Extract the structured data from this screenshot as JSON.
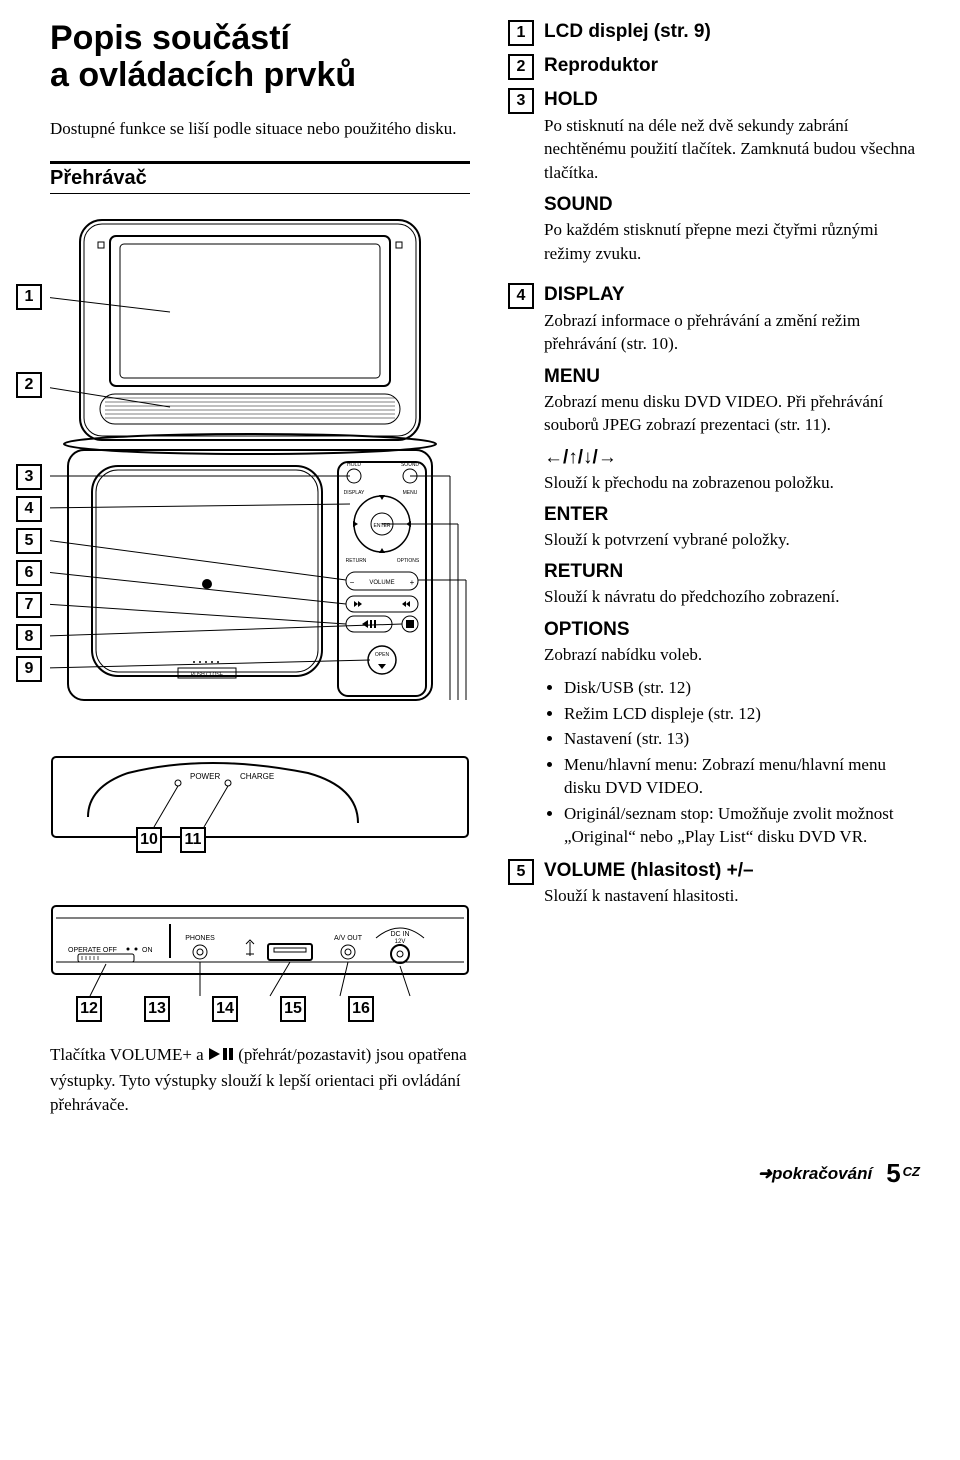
{
  "title_lines": [
    "Popis součástí",
    "a ovládacích prvků"
  ],
  "intro": "Dostupné funkce se liší podle situace nebo použitého disku.",
  "section_head": "Přehrávač",
  "note_before_numbers": "Tlačítka VOLUME+ a",
  "note_after_icon": "(přehrát/pozastavit) jsou opatřena výstupky. Tyto výstupky slouží k lepší orientaci při ovládání přehrávače.",
  "left_callouts_group1": [
    "1",
    "2",
    "3",
    "4",
    "5",
    "6",
    "7",
    "8",
    "9"
  ],
  "left_callouts_group2": [
    "10",
    "11"
  ],
  "left_callouts_group3": [
    "12",
    "13",
    "14",
    "15",
    "16"
  ],
  "svg_labels": {
    "power": "POWER",
    "charge": "CHARGE",
    "operate": "OPERATE OFF",
    "on": "ON",
    "phones": "PHONES",
    "avout": "A/V OUT",
    "dcin": "DC IN",
    "dcin2": "12V",
    "enter": "ENTER",
    "volume": "VOLUME",
    "open": "OPEN",
    "return": "RETURN",
    "options": "OPTIONS",
    "hold": "HOLD",
    "sound": "SOUND",
    "display": "DISPLAY",
    "menu": "MENU",
    "push": "PUSH CLOSE"
  },
  "items": [
    {
      "num": "1",
      "title": "LCD displej (str. 9)"
    },
    {
      "num": "2",
      "title": "Reproduktor"
    },
    {
      "num": "3",
      "title": "HOLD",
      "blocks": [
        {
          "type": "p",
          "text": "Po stisknutí na déle než dvě sekundy zabrání nechtěnému použití tlačítek. Zamknutá budou všechna tlačítka."
        },
        {
          "type": "sub",
          "text": "SOUND"
        },
        {
          "type": "p",
          "text": "Po každém stisknutí přepne mezi čtyřmi různými režimy zvuku."
        }
      ]
    },
    {
      "num": "4",
      "title": "DISPLAY",
      "blocks": [
        {
          "type": "p",
          "text": "Zobrazí informace o přehrávání a změní režim přehrávání (str. 10)."
        },
        {
          "type": "sub",
          "text": "MENU"
        },
        {
          "type": "p",
          "text": "Zobrazí menu disku DVD VIDEO. Při přehrávání souborů JPEG zobrazí prezentaci (str. 11)."
        },
        {
          "type": "sub",
          "text": "←/↑/↓/→"
        },
        {
          "type": "p",
          "text": "Slouží k přechodu na zobrazenou položku."
        },
        {
          "type": "sub",
          "text": "ENTER"
        },
        {
          "type": "p",
          "text": "Slouží k potvrzení vybrané položky."
        },
        {
          "type": "sub",
          "text": "RETURN"
        },
        {
          "type": "p",
          "text": "Slouží k návratu do předchozího zobrazení."
        },
        {
          "type": "sub",
          "text": "OPTIONS"
        },
        {
          "type": "p",
          "text": "Zobrazí nabídku voleb."
        },
        {
          "type": "ul",
          "items": [
            "Disk/USB (str. 12)",
            "Režim LCD displeje (str. 12)",
            "Nastavení (str. 13)",
            "Menu/hlavní menu: Zobrazí menu/hlavní menu disku DVD VIDEO.",
            "Originál/seznam stop: Umožňuje zvolit možnost „Original“ nebo „Play List“ disku DVD VR."
          ]
        }
      ]
    },
    {
      "num": "5",
      "title": "VOLUME (hlasitost) +/–",
      "blocks": [
        {
          "type": "p",
          "text": "Slouží k nastavení hlasitosti."
        }
      ]
    }
  ],
  "continue": {
    "arrow": "➜",
    "label": "pokračování",
    "pagenum": "5",
    "suffix": "CZ"
  }
}
